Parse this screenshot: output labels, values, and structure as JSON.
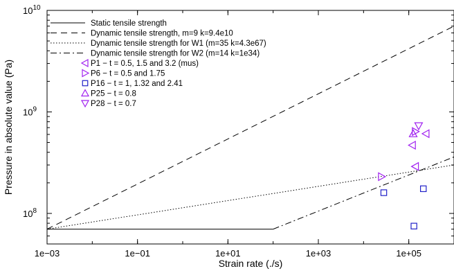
{
  "chart_data": {
    "type": "scatter",
    "title": "",
    "xlabel": "Strain rate (./s)",
    "ylabel": "Pressure in absolute value (Pa)",
    "x_scale": "log",
    "y_scale": "log",
    "xlim": [
      0.001,
      1000000
    ],
    "ylim": [
      50000000,
      10000000000
    ],
    "x_ticks": [
      {
        "value": 0.001,
        "label": "1e−03"
      },
      {
        "value": 0.1,
        "label": "1e−01"
      },
      {
        "value": 10,
        "label": "1e+01"
      },
      {
        "value": 1000,
        "label": "1e+03"
      },
      {
        "value": 100000,
        "label": "1e+05"
      }
    ],
    "y_ticks": [
      {
        "value": 100000000,
        "exp": "8"
      },
      {
        "value": 1000000000,
        "exp": "9"
      },
      {
        "value": 10000000000,
        "exp": "10"
      }
    ],
    "y_tick_base": "10",
    "legend_position": "top-left",
    "lines": [
      {
        "name": "Static tensile strength",
        "style": "solid",
        "points": [
          [
            0.001,
            70000000
          ],
          [
            100,
            70000000
          ]
        ]
      },
      {
        "name": "Dynamic tensile strength, m=9 k=9.4e10",
        "style": "dashed",
        "points": [
          [
            0.001,
            70000000
          ],
          [
            1000000,
            7000000000
          ]
        ]
      },
      {
        "name": "Dynamic tensile strength for W1 (m=35 k=4.3e67)",
        "style": "dotted",
        "points": [
          [
            0.001,
            70000000
          ],
          [
            1000000,
            300000000
          ]
        ]
      },
      {
        "name": "Dynamic tensile strength for W2 (m=14 k=1e34)",
        "style": "dashdot",
        "points": [
          [
            100,
            70000000
          ],
          [
            1000000,
            360000000
          ]
        ]
      }
    ],
    "series": [
      {
        "name": "P1  − t = 0.5, 1.5 and 3.2 (mus)",
        "marker": "triangle-left",
        "color": "#a020f0",
        "points": [
          [
            120000,
            470000000
          ],
          [
            140000,
            290000000
          ],
          [
            240000,
            610000000
          ]
        ]
      },
      {
        "name": "P6  − t = 0.5 and 1.75",
        "marker": "triangle-right",
        "color": "#a020f0",
        "points": [
          [
            25000,
            230000000
          ],
          [
            140000,
            640000000
          ]
        ]
      },
      {
        "name": "P16 − t = 1, 1.32 and 2.41",
        "marker": "square",
        "color": "#2020c8",
        "points": [
          [
            28000,
            160000000
          ],
          [
            130000,
            75000000
          ],
          [
            210000,
            175000000
          ]
        ]
      },
      {
        "name": "P25 − t = 0.8",
        "marker": "triangle-up",
        "color": "#a020f0",
        "points": [
          [
            125000,
            610000000
          ]
        ]
      },
      {
        "name": "P28 − t = 0.7",
        "marker": "triangle-down",
        "color": "#a020f0",
        "points": [
          [
            165000,
            730000000
          ]
        ]
      }
    ]
  }
}
